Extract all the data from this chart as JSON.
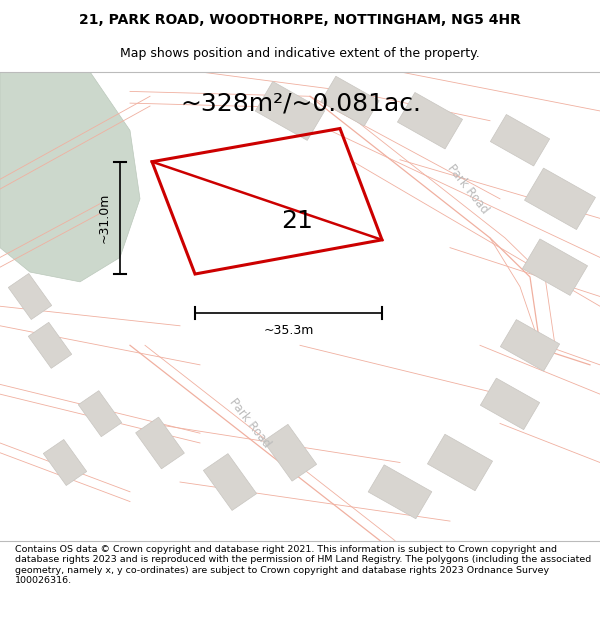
{
  "title_line1": "21, PARK ROAD, WOODTHORPE, NOTTINGHAM, NG5 4HR",
  "title_line2": "Map shows position and indicative extent of the property.",
  "area_text": "~328m²/~0.081ac.",
  "label_number": "21",
  "dim_width": "~35.3m",
  "dim_height": "~31.0m",
  "footer_text": "Contains OS data © Crown copyright and database right 2021. This information is subject to Crown copyright and database rights 2023 and is reproduced with the permission of HM Land Registry. The polygons (including the associated geometry, namely x, y co-ordinates) are subject to Crown copyright and database rights 2023 Ordnance Survey 100026316.",
  "bg_color": "#f5f3ef",
  "road_color": "#f0b0a0",
  "building_color": "#d8d5d0",
  "building_edge": "#c8c5c0",
  "green_color": "#ccd8cc",
  "green_edge": "#bbc8bb",
  "prop_color": "none",
  "prop_edge": "#cc0000",
  "prop_lw": 2.2,
  "diag_lw": 1.8,
  "road_lw": 0.9,
  "road_lw2": 0.6,
  "park_road_color": "#bbbbbb",
  "park_road_fontsize": 8.5,
  "area_fontsize": 18,
  "label_fontsize": 18,
  "dim_fontsize": 9,
  "title_fontsize": 10,
  "subtitle_fontsize": 9,
  "footer_fontsize": 6.8
}
